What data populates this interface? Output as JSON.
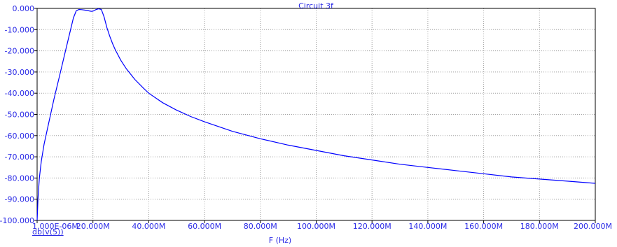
{
  "chart_data": {
    "type": "line",
    "title": "Circuit 3f",
    "xlabel": "F (Hz)",
    "ylabel": "",
    "xlim": [
      1e-06,
      200
    ],
    "ylim": [
      -100,
      0
    ],
    "x_unit": "MHz",
    "y_unit": "dB",
    "grid": true,
    "legend": "bottom-left",
    "colors": {
      "line": "#0000ff",
      "text": "#2a2ae6",
      "grid": "#a0a0a0",
      "axes": "#000000"
    },
    "x_ticks": [
      {
        "value": 1e-06,
        "label": "1.000E-06M"
      },
      {
        "value": 20,
        "label": "20.000M"
      },
      {
        "value": 40,
        "label": "40.000M"
      },
      {
        "value": 60,
        "label": "60.000M"
      },
      {
        "value": 80,
        "label": "80.000M"
      },
      {
        "value": 100,
        "label": "100.000M"
      },
      {
        "value": 120,
        "label": "120.000M"
      },
      {
        "value": 140,
        "label": "140.000M"
      },
      {
        "value": 160,
        "label": "160.000M"
      },
      {
        "value": 180,
        "label": "180.000M"
      },
      {
        "value": 200,
        "label": "200.000M"
      }
    ],
    "y_ticks": [
      {
        "value": 0,
        "label": "0.000"
      },
      {
        "value": -10,
        "label": "-10.000"
      },
      {
        "value": -20,
        "label": "-20.000"
      },
      {
        "value": -30,
        "label": "-30.000"
      },
      {
        "value": -40,
        "label": "-40.000"
      },
      {
        "value": -50,
        "label": "-50.000"
      },
      {
        "value": -60,
        "label": "-60.000"
      },
      {
        "value": -70,
        "label": "-70.000"
      },
      {
        "value": -80,
        "label": "-80.000"
      },
      {
        "value": -90,
        "label": "-90.000"
      },
      {
        "value": -100,
        "label": "-100.000"
      }
    ],
    "series": [
      {
        "name": "db(v(5))",
        "x": [
          0,
          0.3,
          0.8,
          1.5,
          2.5,
          4,
          6,
          8,
          10,
          12,
          13,
          14,
          15,
          16,
          17,
          18,
          19,
          19.5,
          20,
          20.5,
          21,
          22,
          23,
          24,
          25,
          26,
          27,
          28,
          30,
          32,
          35,
          38,
          40,
          45,
          50,
          55,
          60,
          70,
          80,
          90,
          100,
          110,
          120,
          130,
          140,
          150,
          160,
          170,
          180,
          190,
          200
        ],
        "y": [
          -100,
          -90,
          -80,
          -72,
          -64,
          -55,
          -43,
          -32,
          -21,
          -10,
          -4.5,
          -1.2,
          -0.5,
          -0.6,
          -0.8,
          -1,
          -1.3,
          -1.4,
          -1.3,
          -1,
          -0.6,
          -0.2,
          -0.5,
          -4,
          -9,
          -13,
          -16.5,
          -19.5,
          -24.5,
          -28.5,
          -33.5,
          -37.5,
          -40,
          -44.5,
          -48,
          -51,
          -53.5,
          -58,
          -61.5,
          -64.5,
          -67,
          -69.5,
          -71.5,
          -73.5,
          -75,
          -76.5,
          -78,
          -79.5,
          -80.5,
          -81.5,
          -82.5
        ]
      }
    ]
  }
}
